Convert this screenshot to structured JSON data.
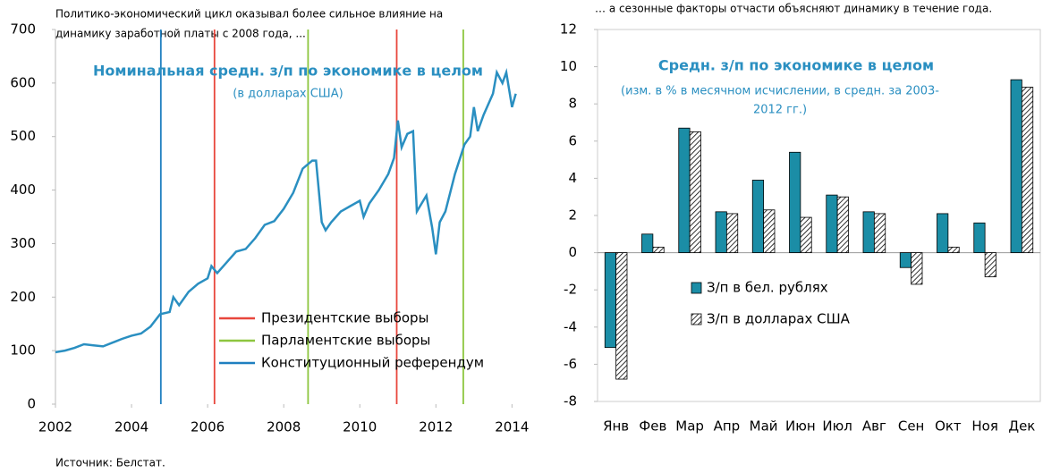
{
  "chart_data": [
    {
      "type": "line",
      "caption": [
        "Политико-экономический цикл оказывал более сильное влияние на",
        "динамику заработной платы с 2008 года, ..."
      ],
      "title": "Номинальная средн. з/п по экономике в целом",
      "subtitle": "(в долларах США)",
      "x": [
        2002.0,
        2002.25,
        2002.5,
        2002.75,
        2003.0,
        2003.25,
        2003.5,
        2003.75,
        2004.0,
        2004.25,
        2004.5,
        2004.75,
        2005.0,
        2005.1,
        2005.25,
        2005.5,
        2005.75,
        2006.0,
        2006.1,
        2006.25,
        2006.5,
        2006.75,
        2007.0,
        2007.25,
        2007.5,
        2007.75,
        2008.0,
        2008.25,
        2008.5,
        2008.75,
        2008.85,
        2009.0,
        2009.1,
        2009.25,
        2009.5,
        2009.75,
        2010.0,
        2010.1,
        2010.25,
        2010.5,
        2010.75,
        2010.9,
        2011.0,
        2011.1,
        2011.25,
        2011.4,
        2011.5,
        2011.75,
        2011.9,
        2012.0,
        2012.1,
        2012.25,
        2012.5,
        2012.75,
        2012.9,
        2013.0,
        2013.1,
        2013.25,
        2013.5,
        2013.6,
        2013.75,
        2013.85,
        2014.0,
        2014.1
      ],
      "values": [
        97,
        100,
        105,
        112,
        110,
        108,
        115,
        122,
        128,
        132,
        145,
        168,
        172,
        200,
        185,
        210,
        225,
        235,
        258,
        245,
        265,
        285,
        290,
        310,
        335,
        342,
        365,
        395,
        440,
        455,
        455,
        340,
        325,
        340,
        360,
        370,
        380,
        350,
        375,
        400,
        430,
        460,
        530,
        480,
        505,
        510,
        360,
        390,
        330,
        280,
        340,
        360,
        430,
        485,
        500,
        555,
        510,
        540,
        580,
        620,
        600,
        620,
        555,
        580
      ],
      "color": "#2a8fc1",
      "vlines": [
        {
          "name": "Президентские выборы",
          "color": "#e8463c",
          "x": [
            2006.18,
            2010.97
          ]
        },
        {
          "name": "Парламентские выборы",
          "color": "#8dc63f",
          "x": [
            2008.64,
            2012.72
          ]
        },
        {
          "name": "Конституционный референдум",
          "color": "#1f7fc0",
          "x": [
            2004.77
          ]
        }
      ],
      "xlim": [
        2002,
        2014.25
      ],
      "xticks": [
        2002,
        2004,
        2006,
        2008,
        2010,
        2012,
        2014
      ],
      "ylim": [
        0,
        700
      ],
      "yticks": [
        0,
        100,
        200,
        300,
        400,
        500,
        600,
        700
      ]
    },
    {
      "type": "bar",
      "caption": [
        "… а сезонные факторы отчасти объясняют динамику в течение года."
      ],
      "title": "Средн. з/п по экономике в целом",
      "subtitle": [
        "(изм. в %  в месячном исчислении, в средн. за 2003-",
        "2012 гг.)"
      ],
      "categories": [
        "Янв",
        "Фев",
        "Мар",
        "Апр",
        "Май",
        "Июн",
        "Июл",
        "Авг",
        "Сен",
        "Окт",
        "Ноя",
        "Дек"
      ],
      "series": [
        {
          "name": "З/п в бел. рублях",
          "color": "#1b8da6",
          "values": [
            -5.1,
            1.0,
            6.7,
            2.2,
            3.9,
            5.4,
            3.1,
            2.2,
            -0.8,
            2.1,
            1.6,
            9.3
          ]
        },
        {
          "name": "З/п в долларах США",
          "color": "#000000",
          "pattern": "hatch",
          "values": [
            -6.8,
            0.3,
            6.5,
            2.1,
            2.3,
            1.9,
            3.0,
            2.1,
            -1.7,
            0.3,
            -1.3,
            8.9
          ]
        }
      ],
      "ylim": [
        -8,
        12
      ],
      "yticks": [
        -8,
        -6,
        -4,
        -2,
        0,
        2,
        4,
        6,
        8,
        10,
        12
      ]
    }
  ],
  "source": "Источник: Белстат."
}
